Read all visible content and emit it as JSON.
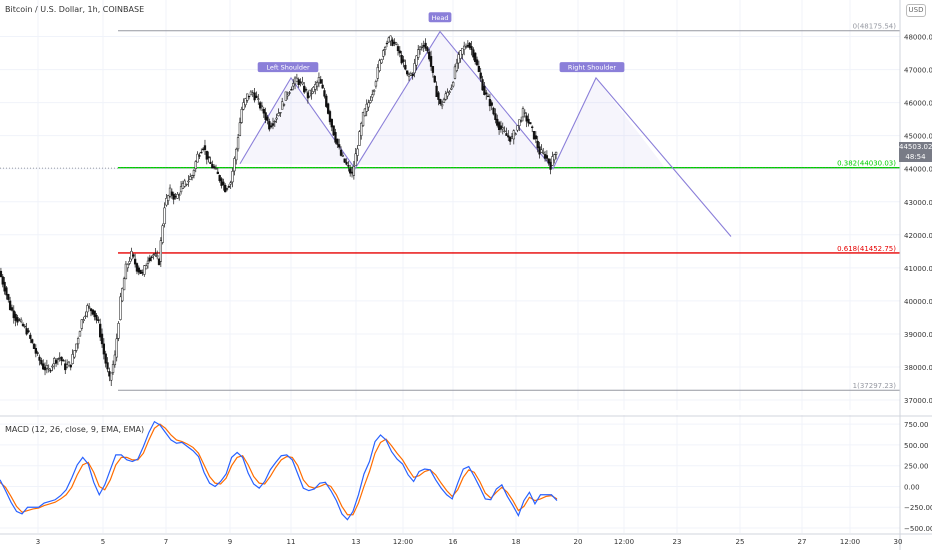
{
  "title": "Bitcoin / U.S. Dollar, 1h, COINBASE",
  "currency": "USD",
  "last_price": "44503.02",
  "countdown": "48:54",
  "macd_label": "MACD (12, 26, close, 9, EMA, EMA)",
  "colors": {
    "up": "#26a69a",
    "down": "#111111",
    "grid": "#f0f3fa",
    "fib_green": "#00cc00",
    "fib_red": "#e60000",
    "pattern": "#8b7fd9",
    "macd": "#2962ff",
    "signal": "#ff6d00"
  },
  "chart_data": [
    {
      "type": "candlestick",
      "x_ticks": [
        "3",
        "5",
        "7",
        "9",
        "11",
        "13",
        "12:00",
        "16",
        "18",
        "20",
        "12:00",
        "23",
        "25",
        "27",
        "12:00",
        "30"
      ],
      "y_ticks": [
        37000,
        38000,
        39000,
        40000,
        41000,
        42000,
        43000,
        44000,
        45000,
        46000,
        47000,
        48000
      ],
      "ylim": [
        36850,
        48500
      ],
      "grid": true,
      "fib_levels": [
        {
          "label": "0(48175.54)",
          "value": 48175.54
        },
        {
          "label": "0.382(44030.03)",
          "value": 44030.03
        },
        {
          "label": "0.618(41452.75)",
          "value": 41452.75
        },
        {
          "label": "1(37297.23)",
          "value": 37297.23
        }
      ],
      "pattern_labels": [
        {
          "label": "Left Shoulder",
          "value": 46800
        },
        {
          "label": "Head",
          "value": 48250
        },
        {
          "label": "Right Shoulder",
          "value": 46800
        }
      ],
      "projection": {
        "from": 46750,
        "to": 41950
      },
      "close_series": [
        40900,
        40400,
        39800,
        39500,
        39300,
        39100,
        38700,
        38300,
        38000,
        37900,
        38200,
        38300,
        38000,
        38100,
        38700,
        39400,
        39800,
        39700,
        39300,
        38400,
        37600,
        38300,
        40000,
        41000,
        41400,
        41000,
        40800,
        41300,
        41400,
        41200,
        42900,
        43300,
        43100,
        43400,
        43600,
        43800,
        44400,
        44700,
        44200,
        44000,
        43700,
        43400,
        43600,
        44600,
        45800,
        46200,
        46300,
        46000,
        45700,
        45300,
        45500,
        45800,
        46200,
        46500,
        46700,
        46500,
        46200,
        46400,
        46700,
        46200,
        45500,
        44900,
        44400,
        44100,
        43800,
        44700,
        45600,
        46000,
        46500,
        47200,
        47800,
        47900,
        47700,
        47300,
        46800,
        46900,
        47600,
        47800,
        47400,
        46500,
        45900,
        46200,
        46500,
        47200,
        47600,
        47800,
        47500,
        46900,
        46300,
        46000,
        45500,
        45200,
        45000,
        44900,
        45300,
        45700,
        45400,
        45000,
        44500,
        44400,
        44100,
        44600
      ],
      "macd_y_ticks": [
        -500,
        -250,
        0,
        250,
        500,
        750
      ],
      "macd_ylim": [
        -560,
        800
      ],
      "macd": [
        80,
        -50,
        -190,
        -300,
        -330,
        -250,
        -250,
        -250,
        -200,
        -180,
        -160,
        -110,
        -40,
        100,
        260,
        350,
        270,
        50,
        -100,
        20,
        200,
        380,
        380,
        320,
        300,
        330,
        480,
        650,
        780,
        740,
        650,
        560,
        520,
        530,
        480,
        430,
        360,
        170,
        40,
        0,
        60,
        150,
        350,
        410,
        350,
        160,
        30,
        -20,
        60,
        200,
        290,
        370,
        380,
        320,
        150,
        -20,
        -50,
        -30,
        40,
        50,
        -50,
        -170,
        -330,
        -400,
        -300,
        -100,
        150,
        300,
        540,
        620,
        560,
        420,
        330,
        270,
        140,
        60,
        180,
        210,
        200,
        80,
        -20,
        -100,
        -150,
        40,
        210,
        240,
        120,
        -10,
        -150,
        -160,
        -30,
        20,
        -120,
        -230,
        -350,
        -170,
        -70,
        -210,
        -100,
        -100,
        -100,
        -170
      ],
      "signal": [
        50,
        -10,
        -120,
        -240,
        -310,
        -290,
        -270,
        -260,
        -230,
        -210,
        -190,
        -150,
        -100,
        -10,
        140,
        260,
        290,
        170,
        0,
        -40,
        80,
        260,
        350,
        350,
        320,
        320,
        400,
        560,
        700,
        750,
        700,
        620,
        560,
        540,
        510,
        470,
        400,
        260,
        120,
        40,
        30,
        100,
        250,
        350,
        370,
        260,
        120,
        40,
        30,
        120,
        230,
        320,
        360,
        350,
        250,
        80,
        0,
        -20,
        0,
        30,
        0,
        -100,
        -240,
        -340,
        -340,
        -200,
        0,
        180,
        400,
        530,
        570,
        490,
        400,
        320,
        210,
        110,
        130,
        180,
        200,
        140,
        40,
        -50,
        -120,
        -40,
        110,
        200,
        170,
        60,
        -80,
        -140,
        -70,
        -10,
        -70,
        -170,
        -290,
        -240,
        -130,
        -170,
        -150,
        -120,
        -110,
        -150
      ]
    }
  ]
}
